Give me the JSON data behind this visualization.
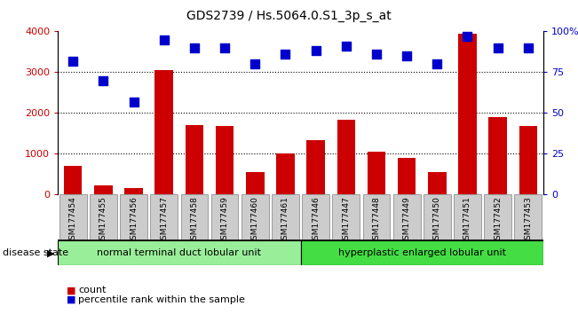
{
  "title": "GDS2739 / Hs.5064.0.S1_3p_s_at",
  "categories": [
    "GSM177454",
    "GSM177455",
    "GSM177456",
    "GSM177457",
    "GSM177458",
    "GSM177459",
    "GSM177460",
    "GSM177461",
    "GSM177446",
    "GSM177447",
    "GSM177448",
    "GSM177449",
    "GSM177450",
    "GSM177451",
    "GSM177452",
    "GSM177453"
  ],
  "bar_values": [
    700,
    230,
    160,
    3050,
    1700,
    1680,
    560,
    1020,
    1330,
    1840,
    1060,
    900,
    560,
    3950,
    1900,
    1680
  ],
  "pct_values": [
    82,
    70,
    57,
    95,
    90,
    90,
    80,
    86,
    88,
    91,
    86,
    85,
    80,
    97,
    90,
    90
  ],
  "bar_color": "#cc0000",
  "pct_color": "#0000cc",
  "ylim_left": [
    0,
    4000
  ],
  "ylim_right": [
    0,
    100
  ],
  "yticks_left": [
    0,
    1000,
    2000,
    3000,
    4000
  ],
  "ytick_labels_right": [
    "0",
    "25",
    "50",
    "75",
    "100%"
  ],
  "yticks_right": [
    0,
    25,
    50,
    75,
    100
  ],
  "grid_values": [
    1000,
    2000,
    3000
  ],
  "group1_label": "normal terminal duct lobular unit",
  "group1_count": 8,
  "group2_label": "hyperplastic enlarged lobular unit",
  "group2_count": 8,
  "disease_state_label": "disease state",
  "legend_count_label": "count",
  "legend_pct_label": "percentile rank within the sample",
  "group1_color": "#99ee99",
  "group2_color": "#44dd44",
  "xticklabel_bg": "#cccccc",
  "bar_width": 0.6
}
